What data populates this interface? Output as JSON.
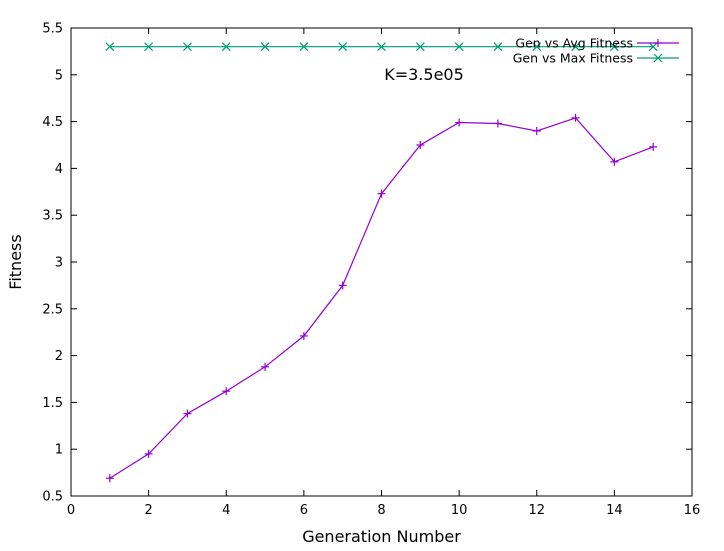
{
  "chart_data": {
    "type": "line",
    "xlabel": "Generation Number",
    "ylabel": "Fitness",
    "xlim": [
      0,
      16
    ],
    "ylim": [
      0.5,
      5.5
    ],
    "xticks": [
      "0",
      "2",
      "4",
      "6",
      "8",
      "10",
      "12",
      "14",
      "16"
    ],
    "yticks": [
      "0.5",
      "1",
      "1.5",
      "2",
      "2.5",
      "3",
      "3.5",
      "4",
      "4.5",
      "5",
      "5.5"
    ],
    "grid": false,
    "legend_position": "top-right",
    "annotation": "K=3.5e05",
    "series": [
      {
        "name": "Gen vs Avg Fitness",
        "color": "#9400d3",
        "marker": "plus",
        "x": [
          1,
          2,
          3,
          4,
          5,
          6,
          7,
          8,
          9,
          10,
          11,
          12,
          13,
          14,
          15
        ],
        "y": [
          0.69,
          0.95,
          1.38,
          1.62,
          1.88,
          2.21,
          2.75,
          3.73,
          4.25,
          4.49,
          4.48,
          4.4,
          4.54,
          4.07,
          4.23
        ]
      },
      {
        "name": "Gen vs Max Fitness",
        "color": "#009e73",
        "marker": "x",
        "x": [
          1,
          2,
          3,
          4,
          5,
          6,
          7,
          8,
          9,
          10,
          11,
          12,
          13,
          14,
          15
        ],
        "y": [
          5.3,
          5.3,
          5.3,
          5.3,
          5.3,
          5.3,
          5.3,
          5.3,
          5.3,
          5.3,
          5.3,
          5.3,
          5.3,
          5.3,
          5.3
        ]
      }
    ]
  }
}
